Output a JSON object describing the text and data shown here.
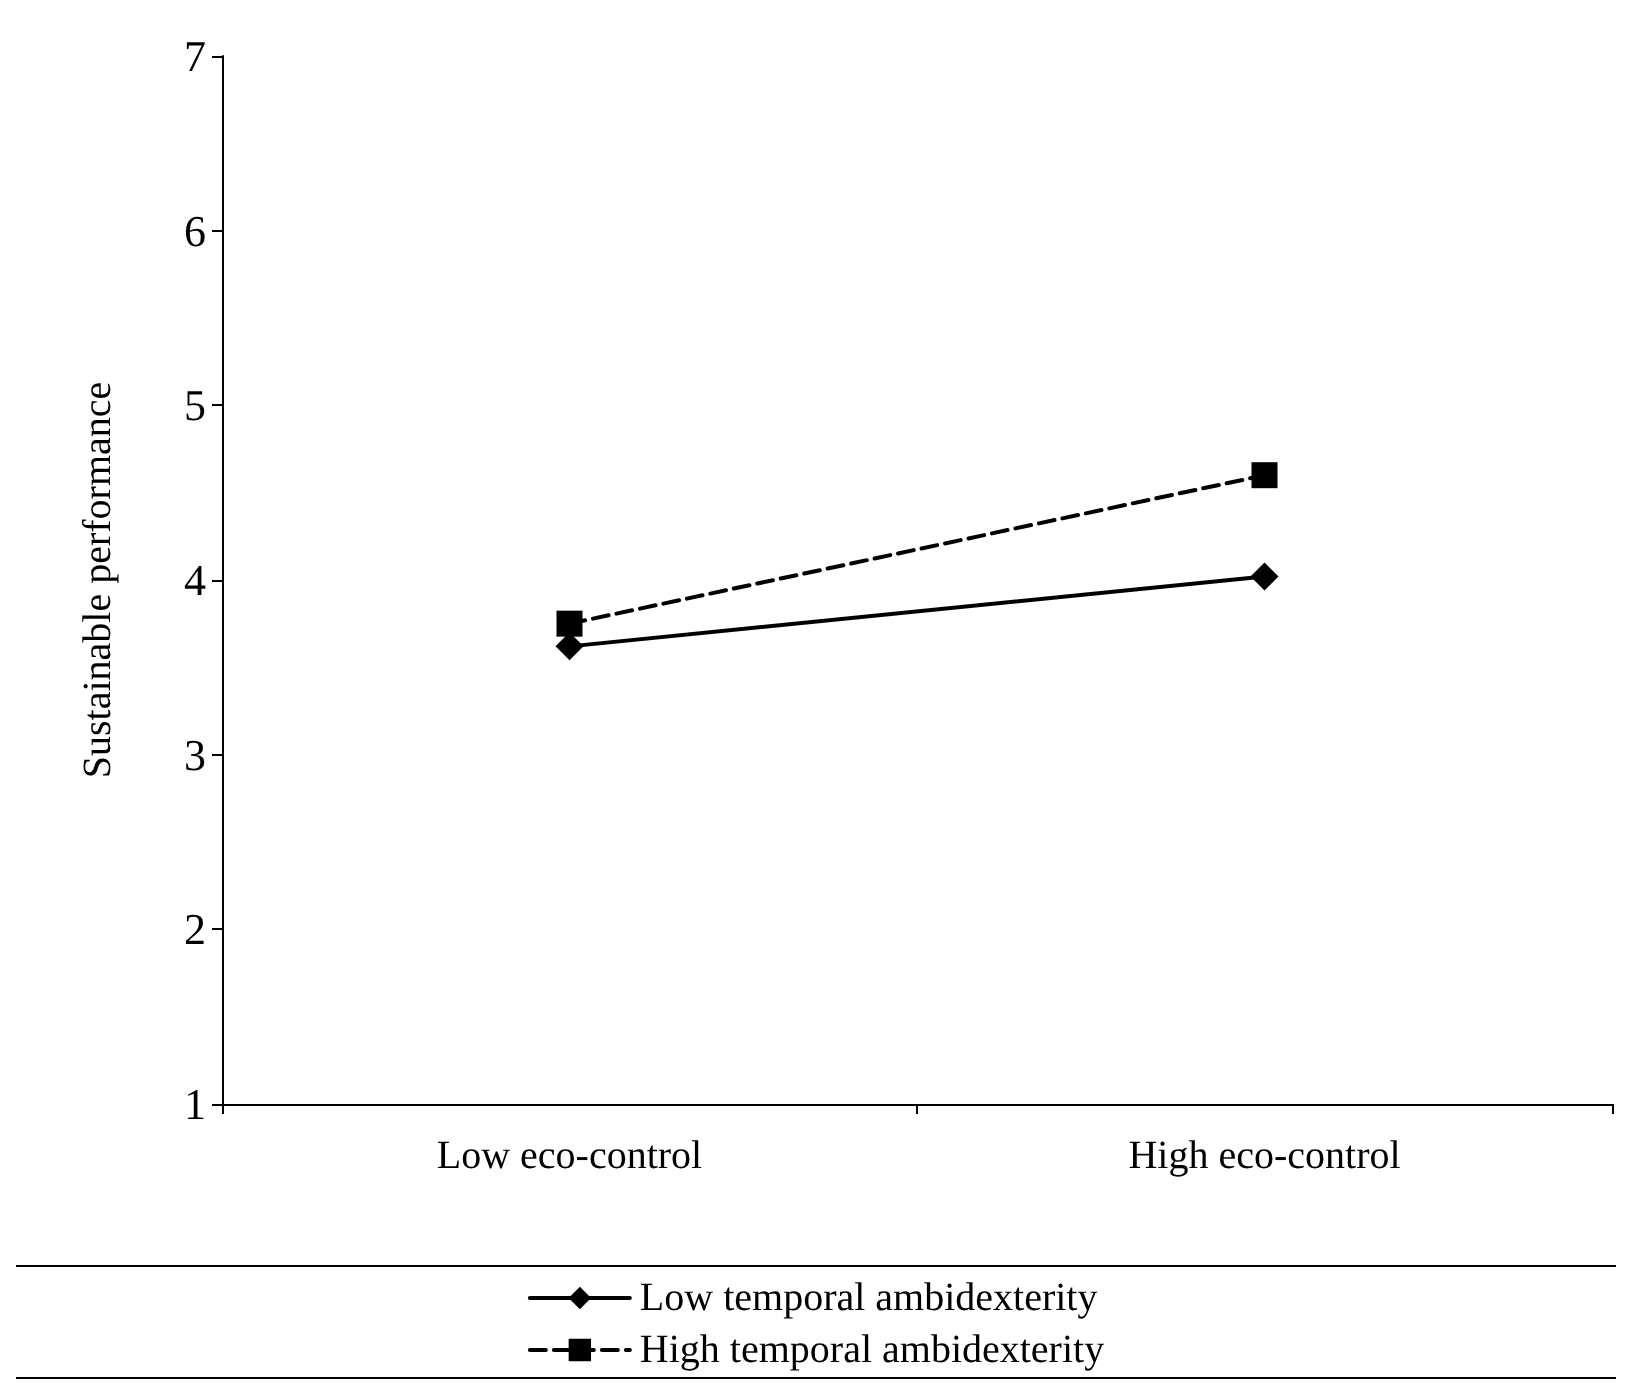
{
  "chart_data": {
    "type": "line",
    "ylabel": "Sustainable performance",
    "categories": [
      "Low eco-control",
      "High eco-control"
    ],
    "series": [
      {
        "name": "Low temporal ambidexterity",
        "color": "#000000",
        "values": [
          3.62,
          4.02
        ],
        "marker": "diamond",
        "line_style": "solid"
      },
      {
        "name": "High temporal ambidexterity",
        "color": "#000000",
        "values": [
          3.75,
          4.6
        ],
        "marker": "square",
        "line_style": "dashed"
      }
    ],
    "ylim": [
      1,
      7
    ],
    "yticks": [
      1,
      2,
      3,
      4,
      5,
      6,
      7
    ],
    "grid": false,
    "legend": "bottom"
  }
}
